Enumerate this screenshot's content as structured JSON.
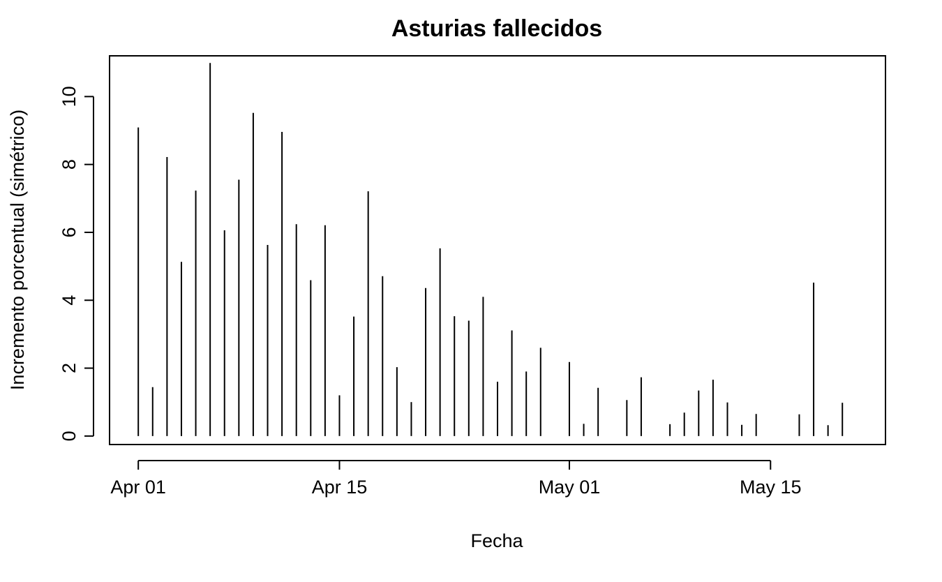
{
  "chart_data": {
    "type": "bar",
    "style": "histogram-lines",
    "title": "Asturias fallecidos",
    "xlabel": "Fecha",
    "ylabel": "Incremento porcentual (simétrico)",
    "x_axis": {
      "type": "date",
      "range": [
        "2020-03-30",
        "2020-05-23"
      ],
      "ticks": [
        {
          "date": "2020-04-01",
          "label": "Apr 01"
        },
        {
          "date": "2020-04-15",
          "label": "Apr 15"
        },
        {
          "date": "2020-05-01",
          "label": "May 01"
        },
        {
          "date": "2020-05-15",
          "label": "May 15"
        }
      ]
    },
    "y_axis": {
      "range": [
        -0.25,
        11.2
      ],
      "ticks": [
        {
          "value": 0,
          "label": "0"
        },
        {
          "value": 2,
          "label": "2"
        },
        {
          "value": 4,
          "label": "4"
        },
        {
          "value": 6,
          "label": "6"
        },
        {
          "value": 8,
          "label": "8"
        },
        {
          "value": 10,
          "label": "10"
        }
      ]
    },
    "grid": false,
    "legend": "none",
    "color": "#000000",
    "x": [
      "2020-04-01",
      "2020-04-02",
      "2020-04-03",
      "2020-04-04",
      "2020-04-05",
      "2020-04-06",
      "2020-04-07",
      "2020-04-08",
      "2020-04-09",
      "2020-04-10",
      "2020-04-11",
      "2020-04-12",
      "2020-04-13",
      "2020-04-14",
      "2020-04-15",
      "2020-04-16",
      "2020-04-17",
      "2020-04-18",
      "2020-04-19",
      "2020-04-20",
      "2020-04-21",
      "2020-04-22",
      "2020-04-23",
      "2020-04-24",
      "2020-04-25",
      "2020-04-26",
      "2020-04-27",
      "2020-04-28",
      "2020-04-29",
      "2020-04-30",
      "2020-05-01",
      "2020-05-02",
      "2020-05-03",
      "2020-05-04",
      "2020-05-05",
      "2020-05-06",
      "2020-05-07",
      "2020-05-08",
      "2020-05-09",
      "2020-05-10",
      "2020-05-11",
      "2020-05-12",
      "2020-05-13",
      "2020-05-14",
      "2020-05-15",
      "2020-05-16",
      "2020-05-17",
      "2020-05-18",
      "2020-05-19",
      "2020-05-20"
    ],
    "values": [
      9.09,
      1.44,
      8.22,
      5.13,
      7.23,
      10.99,
      6.06,
      7.55,
      9.52,
      5.63,
      8.96,
      6.24,
      4.59,
      6.21,
      1.2,
      3.52,
      7.21,
      4.71,
      2.03,
      1.0,
      4.36,
      5.53,
      3.53,
      3.4,
      4.1,
      1.6,
      3.11,
      1.9,
      2.6,
      0.0,
      2.18,
      0.36,
      1.42,
      0.0,
      1.06,
      1.73,
      0.0,
      0.35,
      0.69,
      1.34,
      1.66,
      0.99,
      0.33,
      0.65,
      0.0,
      0.0,
      0.64,
      4.52,
      0.32,
      0.98
    ]
  }
}
